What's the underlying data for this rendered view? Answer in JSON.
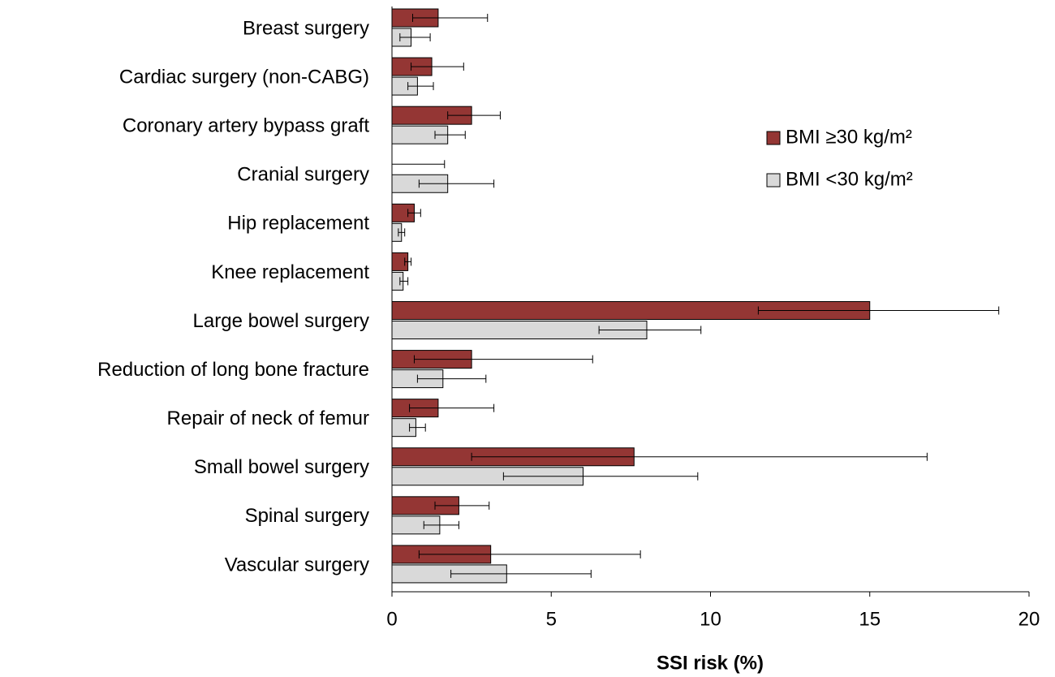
{
  "chart_data": {
    "type": "bar",
    "orientation": "horizontal",
    "x_label": "SSI risk (%)",
    "categories": [
      "Breast surgery",
      "Cardiac surgery (non-CABG)",
      "Coronary artery bypass graft",
      "Cranial surgery",
      "Hip replacement",
      "Knee replacement",
      "Large bowel surgery",
      "Reduction of long bone fracture",
      "Repair of neck of femur",
      "Small bowel surgery",
      "Spinal surgery",
      "Vascular surgery"
    ],
    "series": [
      {
        "name": "BMI ≥30 kg/m²",
        "color": "#943634",
        "values": [
          1.45,
          1.25,
          2.5,
          0,
          0.7,
          0.5,
          15.0,
          2.5,
          1.45,
          7.6,
          2.1,
          3.1
        ],
        "ci_lower": [
          0.65,
          0.6,
          1.75,
          0,
          0.5,
          0.4,
          11.5,
          0.7,
          0.55,
          2.5,
          1.35,
          0.85
        ],
        "ci_upper": [
          3.0,
          2.25,
          3.4,
          1.65,
          0.9,
          0.6,
          19.05,
          6.3,
          3.2,
          16.8,
          3.05,
          7.8
        ]
      },
      {
        "name": "BMI <30 kg/m²",
        "color": "#d9d9d9",
        "values": [
          0.6,
          0.8,
          1.75,
          1.75,
          0.3,
          0.35,
          8.0,
          1.6,
          0.75,
          6.0,
          1.5,
          3.6
        ],
        "ci_lower": [
          0.25,
          0.5,
          1.35,
          0.85,
          0.2,
          0.25,
          6.5,
          0.8,
          0.55,
          3.5,
          1.0,
          1.85
        ],
        "ci_upper": [
          1.2,
          1.3,
          2.3,
          3.2,
          0.4,
          0.5,
          9.7,
          2.95,
          1.05,
          9.6,
          2.1,
          6.25
        ]
      }
    ],
    "xlim": [
      0,
      20
    ],
    "xticks": [
      0,
      5,
      10,
      15,
      20
    ],
    "grid": false,
    "legend": "upper right"
  }
}
